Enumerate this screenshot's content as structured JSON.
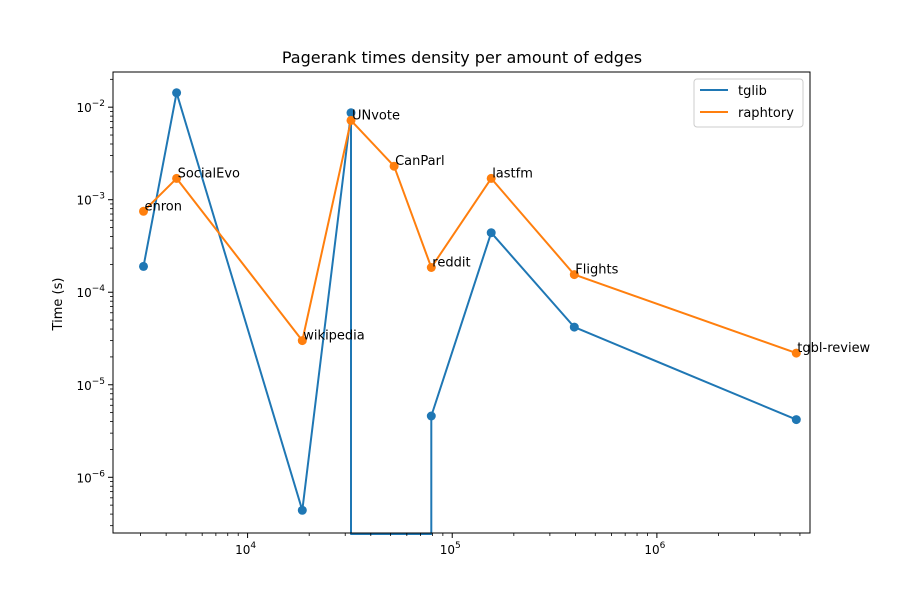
{
  "chart_data": {
    "type": "line",
    "title": "Pagerank times density per amount of edges",
    "xlabel": "",
    "ylabel": "Time (s)",
    "xscale": "log",
    "yscale": "log",
    "xlim": [
      2200,
      5600000
    ],
    "ylim": [
      2.5e-07,
      0.024
    ],
    "x_ticks": [
      {
        "value": 10000,
        "base": "10",
        "exp": "4"
      },
      {
        "value": 100000,
        "base": "10",
        "exp": "5"
      },
      {
        "value": 1000000,
        "base": "10",
        "exp": "6"
      }
    ],
    "y_ticks": [
      {
        "value": 1e-06,
        "base": "10",
        "exp": "−6"
      },
      {
        "value": 1e-05,
        "base": "10",
        "exp": "−5"
      },
      {
        "value": 0.0001,
        "base": "10",
        "exp": "−4"
      },
      {
        "value": 0.001,
        "base": "10",
        "exp": "−3"
      },
      {
        "value": 0.01,
        "base": "10",
        "exp": "−2"
      }
    ],
    "grid": false,
    "legend_position": "top-right",
    "series": [
      {
        "name": "tglib",
        "color": "#1f77b4",
        "points": [
          {
            "x": 3100,
            "y": 0.00019
          },
          {
            "x": 4500,
            "y": 0.0143
          },
          {
            "x": 18500,
            "y": 4.4e-07
          },
          {
            "x": 32000,
            "y": 0.0087
          },
          {
            "x": 32000,
            "y": 1e-09,
            "break": true
          },
          {
            "x": 79000,
            "y": 1e-09,
            "break": true
          },
          {
            "x": 79000,
            "y": 4.6e-06
          },
          {
            "x": 155000,
            "y": 0.00044
          },
          {
            "x": 395000,
            "y": 4.2e-05
          },
          {
            "x": 4800000,
            "y": 4.2e-06
          }
        ]
      },
      {
        "name": "raphtory",
        "color": "#ff7f0e",
        "points": [
          {
            "x": 3100,
            "y": 0.00075,
            "label": "enron"
          },
          {
            "x": 4500,
            "y": 0.0017,
            "label": "SocialEvo"
          },
          {
            "x": 18500,
            "y": 3e-05,
            "label": "wikipedia"
          },
          {
            "x": 32000,
            "y": 0.0072,
            "label": "UNvote"
          },
          {
            "x": 52000,
            "y": 0.0023,
            "label": "CanParl"
          },
          {
            "x": 79000,
            "y": 0.000185,
            "label": "reddit"
          },
          {
            "x": 155000,
            "y": 0.0017,
            "label": "lastfm"
          },
          {
            "x": 395000,
            "y": 0.000155,
            "label": "Flights"
          },
          {
            "x": 4800000,
            "y": 2.2e-05,
            "label": "tgbl-review"
          }
        ]
      }
    ]
  }
}
